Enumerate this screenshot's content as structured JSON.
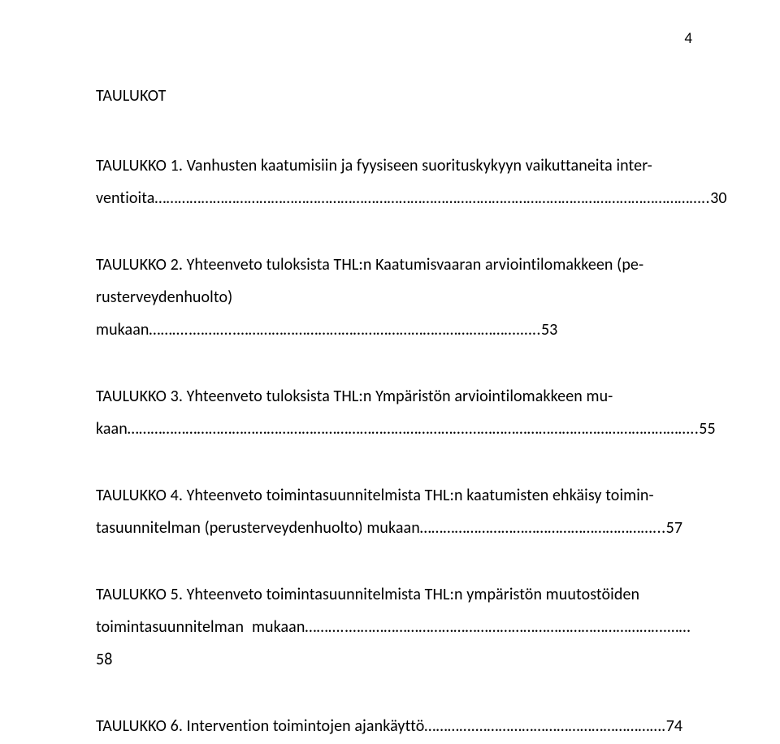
{
  "page_number": "4",
  "heading": "TAULUKOT",
  "entries": [
    {
      "label": "TAULUKKO 1. Vanhusten kaatumisiin ja fyysiseen suorituskykyyn vaikuttaneita inter-",
      "line2_prefix": "ventioita",
      "leader": "……………………………………………………………………………………………………………………………..",
      "page": "30"
    },
    {
      "label": "TAULUKKO 2. Yhteenveto tuloksista THL:n Kaatumisvaaran arviointilomakkeen (pe-",
      "line2_prefix": "rusterveydenhuolto) mukaan",
      "leader": "………..………..……………………………………………………………….…..",
      "page": "53"
    },
    {
      "label": "TAULUKKO 3. Yhteenveto tuloksista THL:n Ympäristön arviointilomakkeen mu-",
      "line2_prefix": "kaan",
      "leader": "…………………………………………………………………………….…………………………………………………..",
      "page": "55"
    },
    {
      "label": "TAULUKKO 4. Yhteenveto toimintasuunnitelmista THL:n  kaatumisten ehkäisy toimin-",
      "line2_prefix": "tasuunnitelman (perusterveydenhuolto) mukaan",
      "leader": "……………………………………………………...",
      "page": "57"
    },
    {
      "label": "TAULUKKO 5. Yhteenveto toimintasuunnitelmista THL:n  ympäristön muutostöiden",
      "line2_prefix": "toimintasuunnitelman mukaan",
      "leader": "………..……………………………………………………………………….……",
      "page": "58"
    },
    {
      "label_single": "TAULUKKO 6. Intervention toimintojen ajankäyttö",
      "leader": "………….………………………………………….",
      "page": "74"
    }
  ]
}
